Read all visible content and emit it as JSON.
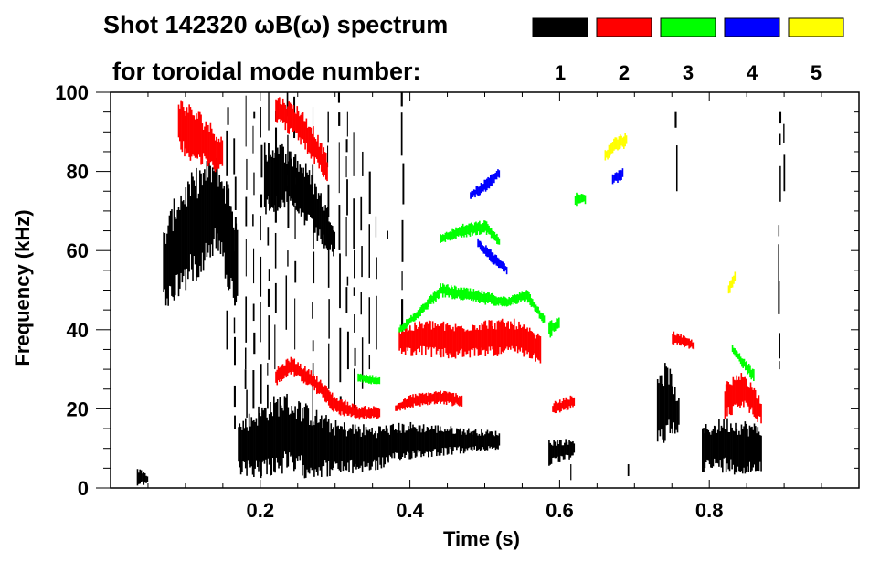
{
  "chart_data": {
    "type": "heatmap",
    "title_line1": "Shot 142320 ωB(ω) spectrum",
    "title_line2": "for toroidal mode number:",
    "xlabel": "Time (s)",
    "ylabel": "Frequency (kHz)",
    "xlim": [
      0,
      1.0
    ],
    "ylim": [
      0,
      100
    ],
    "xticks": [
      {
        "value": 0.2,
        "label": "0.2"
      },
      {
        "value": 0.4,
        "label": "0.4"
      },
      {
        "value": 0.6,
        "label": "0.6"
      },
      {
        "value": 0.8,
        "label": "0.8"
      }
    ],
    "yticks": [
      {
        "value": 0,
        "label": "0"
      },
      {
        "value": 20,
        "label": "20"
      },
      {
        "value": 40,
        "label": "40"
      },
      {
        "value": 60,
        "label": "60"
      },
      {
        "value": 80,
        "label": "80"
      },
      {
        "value": 100,
        "label": "100"
      }
    ],
    "x_minor_step": 0.05,
    "y_minor_step": 5,
    "legend": {
      "placement": "top-right",
      "entries": [
        {
          "mode": "1",
          "color": "#000000"
        },
        {
          "mode": "2",
          "color": "#ff0000"
        },
        {
          "mode": "3",
          "color": "#00ff00"
        },
        {
          "mode": "4",
          "color": "#0000ff"
        },
        {
          "mode": "5",
          "color": "#ffff00"
        }
      ]
    },
    "features": [
      {
        "mode": 1,
        "points": [
          [
            0.07,
            55,
            9
          ],
          [
            0.09,
            62,
            12
          ],
          [
            0.12,
            68,
            12
          ],
          [
            0.14,
            72,
            10
          ],
          [
            0.16,
            62,
            12
          ],
          [
            0.17,
            55,
            8
          ]
        ]
      },
      {
        "mode": 1,
        "points": [
          [
            0.205,
            78,
            8
          ],
          [
            0.23,
            79,
            7
          ],
          [
            0.26,
            74,
            7
          ],
          [
            0.28,
            68,
            6
          ],
          [
            0.3,
            62,
            4
          ]
        ]
      },
      {
        "mode": 1,
        "points": [
          [
            0.17,
            10,
            6
          ],
          [
            0.2,
            12,
            8
          ],
          [
            0.23,
            14,
            9
          ],
          [
            0.26,
            12,
            8
          ],
          [
            0.3,
            10,
            6
          ],
          [
            0.35,
            10,
            5
          ],
          [
            0.4,
            12,
            4
          ],
          [
            0.46,
            12,
            3
          ],
          [
            0.52,
            12,
            2
          ]
        ]
      },
      {
        "mode": 1,
        "points": [
          [
            0.585,
            9,
            3
          ],
          [
            0.62,
            10,
            2
          ]
        ]
      },
      {
        "mode": 1,
        "points": [
          [
            0.73,
            20,
            10
          ],
          [
            0.745,
            22,
            8
          ],
          [
            0.76,
            18,
            3
          ]
        ]
      },
      {
        "mode": 1,
        "points": [
          [
            0.79,
            10,
            5
          ],
          [
            0.82,
            11,
            6
          ],
          [
            0.85,
            10,
            6
          ],
          [
            0.87,
            10,
            5
          ]
        ]
      },
      {
        "mode": 1,
        "points": [
          [
            0.035,
            3,
            2
          ],
          [
            0.05,
            2,
            1
          ]
        ]
      },
      {
        "mode": 2,
        "points": [
          [
            0.09,
            92,
            6
          ],
          [
            0.12,
            88,
            6
          ],
          [
            0.15,
            84,
            4
          ]
        ]
      },
      {
        "mode": 2,
        "points": [
          [
            0.22,
            96,
            3
          ],
          [
            0.25,
            92,
            4
          ],
          [
            0.27,
            87,
            4
          ],
          [
            0.29,
            80,
            3
          ]
        ]
      },
      {
        "mode": 2,
        "points": [
          [
            0.22,
            28,
            2
          ],
          [
            0.24,
            31,
            2
          ],
          [
            0.27,
            27,
            2
          ],
          [
            0.3,
            21,
            2
          ],
          [
            0.33,
            19,
            1.5
          ],
          [
            0.36,
            19,
            1.5
          ]
        ]
      },
      {
        "mode": 2,
        "points": [
          [
            0.38,
            20,
            1
          ],
          [
            0.4,
            22,
            1.5
          ],
          [
            0.44,
            23,
            1.5
          ],
          [
            0.47,
            22,
            1.5
          ]
        ]
      },
      {
        "mode": 2,
        "points": [
          [
            0.385,
            37,
            3
          ],
          [
            0.42,
            38,
            4
          ],
          [
            0.46,
            37,
            4
          ],
          [
            0.5,
            38,
            4
          ],
          [
            0.54,
            38,
            4
          ],
          [
            0.575,
            35,
            3
          ]
        ]
      },
      {
        "mode": 2,
        "points": [
          [
            0.59,
            20,
            1.5
          ],
          [
            0.62,
            22,
            1.5
          ]
        ]
      },
      {
        "mode": 2,
        "points": [
          [
            0.75,
            38,
            1.5
          ],
          [
            0.78,
            36,
            1
          ]
        ]
      },
      {
        "mode": 2,
        "points": [
          [
            0.82,
            22,
            4
          ],
          [
            0.845,
            25,
            4
          ],
          [
            0.87,
            19,
            3
          ]
        ]
      },
      {
        "mode": 3,
        "points": [
          [
            0.385,
            40,
            1
          ],
          [
            0.41,
            44,
            1
          ],
          [
            0.44,
            50,
            1.5
          ],
          [
            0.47,
            49,
            1.5
          ],
          [
            0.5,
            48,
            1.5
          ],
          [
            0.53,
            47,
            1
          ],
          [
            0.555,
            49,
            1.5
          ],
          [
            0.58,
            42,
            1
          ]
        ]
      },
      {
        "mode": 3,
        "points": [
          [
            0.44,
            63,
            1
          ],
          [
            0.47,
            65,
            1.5
          ],
          [
            0.5,
            66,
            1.5
          ],
          [
            0.52,
            62,
            1
          ]
        ]
      },
      {
        "mode": 3,
        "points": [
          [
            0.62,
            73,
            1.5
          ],
          [
            0.635,
            73,
            1
          ]
        ]
      },
      {
        "mode": 3,
        "points": [
          [
            0.33,
            28,
            1
          ],
          [
            0.36,
            27,
            1
          ]
        ]
      },
      {
        "mode": 3,
        "points": [
          [
            0.83,
            35,
            1
          ],
          [
            0.86,
            28,
            1.5
          ]
        ]
      },
      {
        "mode": 3,
        "points": [
          [
            0.585,
            40,
            2
          ],
          [
            0.6,
            42,
            1
          ]
        ]
      },
      {
        "mode": 4,
        "points": [
          [
            0.48,
            74,
            1
          ],
          [
            0.505,
            77,
            1.5
          ],
          [
            0.52,
            80,
            1
          ]
        ]
      },
      {
        "mode": 4,
        "points": [
          [
            0.49,
            62,
            1
          ],
          [
            0.51,
            58,
            1.5
          ],
          [
            0.53,
            55,
            1
          ]
        ]
      },
      {
        "mode": 4,
        "points": [
          [
            0.67,
            78,
            1.5
          ],
          [
            0.685,
            80,
            1.5
          ]
        ]
      },
      {
        "mode": 5,
        "points": [
          [
            0.66,
            84,
            1.5
          ],
          [
            0.675,
            87,
            2
          ],
          [
            0.69,
            88,
            1.5
          ]
        ]
      },
      {
        "mode": 5,
        "points": [
          [
            0.825,
            50,
            1.5
          ],
          [
            0.835,
            54,
            1
          ]
        ]
      }
    ],
    "streaks": [
      {
        "mode": 1,
        "t": 0.155,
        "f": [
          35,
          100
        ]
      },
      {
        "mode": 1,
        "t": 0.165,
        "f": [
          15,
          90
        ]
      },
      {
        "mode": 1,
        "t": 0.18,
        "f": [
          5,
          100
        ]
      },
      {
        "mode": 1,
        "t": 0.19,
        "f": [
          20,
          95
        ]
      },
      {
        "mode": 1,
        "t": 0.2,
        "f": [
          3,
          100
        ]
      },
      {
        "mode": 1,
        "t": 0.21,
        "f": [
          20,
          100
        ]
      },
      {
        "mode": 1,
        "t": 0.22,
        "f": [
          30,
          100
        ]
      },
      {
        "mode": 1,
        "t": 0.235,
        "f": [
          40,
          100
        ]
      },
      {
        "mode": 1,
        "t": 0.245,
        "f": [
          35,
          100
        ]
      },
      {
        "mode": 1,
        "t": 0.27,
        "f": [
          15,
          100
        ]
      },
      {
        "mode": 1,
        "t": 0.29,
        "f": [
          25,
          95
        ]
      },
      {
        "mode": 1,
        "t": 0.305,
        "f": [
          20,
          100
        ]
      },
      {
        "mode": 1,
        "t": 0.315,
        "f": [
          30,
          95
        ]
      },
      {
        "mode": 1,
        "t": 0.325,
        "f": [
          20,
          90
        ]
      },
      {
        "mode": 1,
        "t": 0.335,
        "f": [
          25,
          85
        ]
      },
      {
        "mode": 1,
        "t": 0.345,
        "f": [
          30,
          80
        ]
      },
      {
        "mode": 1,
        "t": 0.355,
        "f": [
          35,
          70
        ]
      },
      {
        "mode": 1,
        "t": 0.37,
        "f": [
          63,
          65
        ]
      },
      {
        "mode": 1,
        "t": 0.389,
        "f": [
          35,
          100
        ]
      },
      {
        "mode": 1,
        "t": 0.755,
        "f": [
          75,
          95
        ]
      },
      {
        "mode": 1,
        "t": 0.893,
        "f": [
          30,
          95
        ]
      },
      {
        "mode": 1,
        "t": 0.9,
        "f": [
          75,
          92
        ]
      },
      {
        "mode": 1,
        "t": 0.615,
        "f": [
          2,
          6
        ]
      },
      {
        "mode": 1,
        "t": 0.69,
        "f": [
          3,
          6
        ]
      }
    ]
  }
}
